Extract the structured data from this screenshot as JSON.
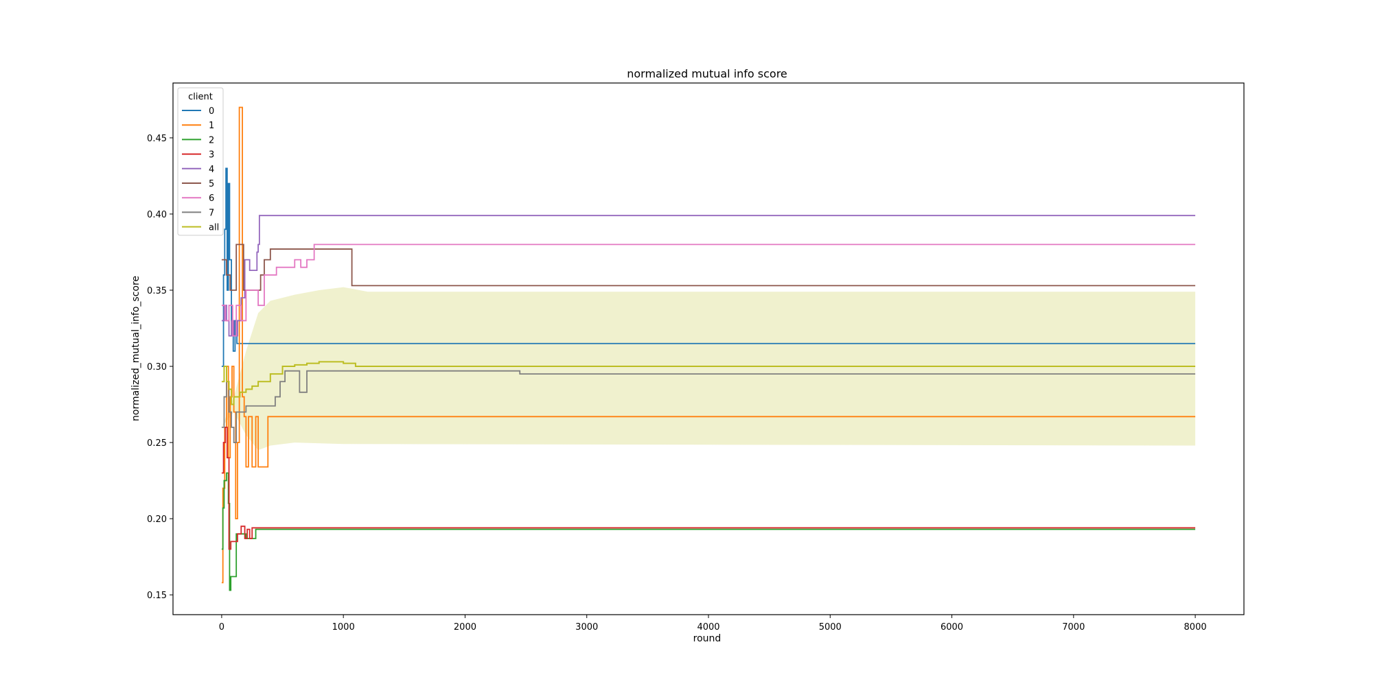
{
  "chart_data": {
    "type": "line",
    "title": "normalized mutual info score",
    "xlabel": "round",
    "ylabel": "normalized_mutual_info_score",
    "xlim": [
      -400,
      8400
    ],
    "ylim": [
      0.137,
      0.486
    ],
    "x_ticks": [
      0,
      1000,
      2000,
      3000,
      4000,
      5000,
      6000,
      7000,
      8000
    ],
    "y_ticks": [
      0.15,
      0.2,
      0.25,
      0.3,
      0.35,
      0.4,
      0.45
    ],
    "grid": false,
    "legend": {
      "title": "client",
      "placement": "top-left"
    },
    "colors": {
      "0": "#1f77b4",
      "1": "#ff7f0e",
      "2": "#2ca02c",
      "3": "#d62728",
      "4": "#9467bd",
      "5": "#8c564b",
      "6": "#e377c2",
      "7": "#7f7f7f",
      "all": "#bcbd22"
    },
    "series": [
      {
        "name": "0",
        "points": [
          [
            0,
            0.3
          ],
          [
            15,
            0.36
          ],
          [
            25,
            0.39
          ],
          [
            35,
            0.43
          ],
          [
            45,
            0.35
          ],
          [
            55,
            0.42
          ],
          [
            65,
            0.37
          ],
          [
            80,
            0.33
          ],
          [
            95,
            0.31
          ],
          [
            110,
            0.33
          ],
          [
            125,
            0.315
          ],
          [
            8000,
            0.315
          ]
        ]
      },
      {
        "name": "1",
        "points": [
          [
            0,
            0.158
          ],
          [
            10,
            0.22
          ],
          [
            25,
            0.26
          ],
          [
            40,
            0.3
          ],
          [
            55,
            0.24
          ],
          [
            70,
            0.28
          ],
          [
            85,
            0.3
          ],
          [
            100,
            0.27
          ],
          [
            115,
            0.2
          ],
          [
            130,
            0.25
          ],
          [
            145,
            0.47
          ],
          [
            160,
            0.47
          ],
          [
            170,
            0.28
          ],
          [
            185,
            0.267
          ],
          [
            200,
            0.234
          ],
          [
            220,
            0.267
          ],
          [
            250,
            0.234
          ],
          [
            280,
            0.267
          ],
          [
            300,
            0.234
          ],
          [
            330,
            0.234
          ],
          [
            350,
            0.234
          ],
          [
            380,
            0.267
          ],
          [
            8000,
            0.267
          ]
        ]
      },
      {
        "name": "2",
        "points": [
          [
            0,
            0.18
          ],
          [
            10,
            0.207
          ],
          [
            20,
            0.225
          ],
          [
            40,
            0.23
          ],
          [
            55,
            0.21
          ],
          [
            65,
            0.153
          ],
          [
            75,
            0.162
          ],
          [
            100,
            0.162
          ],
          [
            120,
            0.19
          ],
          [
            150,
            0.19
          ],
          [
            200,
            0.187
          ],
          [
            250,
            0.187
          ],
          [
            280,
            0.193
          ],
          [
            8000,
            0.193
          ]
        ]
      },
      {
        "name": "3",
        "points": [
          [
            0,
            0.23
          ],
          [
            15,
            0.25
          ],
          [
            30,
            0.26
          ],
          [
            45,
            0.24
          ],
          [
            60,
            0.18
          ],
          [
            75,
            0.185
          ],
          [
            100,
            0.185
          ],
          [
            130,
            0.19
          ],
          [
            160,
            0.195
          ],
          [
            190,
            0.187
          ],
          [
            210,
            0.193
          ],
          [
            230,
            0.187
          ],
          [
            250,
            0.194
          ],
          [
            8000,
            0.194
          ]
        ]
      },
      {
        "name": "4",
        "points": [
          [
            0,
            0.33
          ],
          [
            20,
            0.34
          ],
          [
            40,
            0.33
          ],
          [
            60,
            0.32
          ],
          [
            80,
            0.33
          ],
          [
            100,
            0.32
          ],
          [
            130,
            0.33
          ],
          [
            160,
            0.345
          ],
          [
            190,
            0.37
          ],
          [
            210,
            0.37
          ],
          [
            230,
            0.363
          ],
          [
            280,
            0.363
          ],
          [
            290,
            0.375
          ],
          [
            300,
            0.38
          ],
          [
            310,
            0.399
          ],
          [
            8000,
            0.399
          ]
        ]
      },
      {
        "name": "5",
        "points": [
          [
            0,
            0.37
          ],
          [
            20,
            0.37
          ],
          [
            40,
            0.36
          ],
          [
            70,
            0.35
          ],
          [
            100,
            0.35
          ],
          [
            120,
            0.38
          ],
          [
            160,
            0.38
          ],
          [
            180,
            0.35
          ],
          [
            300,
            0.35
          ],
          [
            320,
            0.36
          ],
          [
            350,
            0.37
          ],
          [
            400,
            0.377
          ],
          [
            1050,
            0.377
          ],
          [
            1070,
            0.353
          ],
          [
            1100,
            0.353
          ],
          [
            8000,
            0.353
          ]
        ]
      },
      {
        "name": "6",
        "points": [
          [
            0,
            0.34
          ],
          [
            30,
            0.33
          ],
          [
            60,
            0.34
          ],
          [
            90,
            0.32
          ],
          [
            120,
            0.34
          ],
          [
            160,
            0.33
          ],
          [
            200,
            0.35
          ],
          [
            250,
            0.35
          ],
          [
            300,
            0.34
          ],
          [
            350,
            0.36
          ],
          [
            400,
            0.36
          ],
          [
            450,
            0.365
          ],
          [
            520,
            0.365
          ],
          [
            600,
            0.37
          ],
          [
            650,
            0.365
          ],
          [
            700,
            0.37
          ],
          [
            760,
            0.38
          ],
          [
            8000,
            0.38
          ]
        ]
      },
      {
        "name": "7",
        "points": [
          [
            0,
            0.26
          ],
          [
            20,
            0.28
          ],
          [
            40,
            0.29
          ],
          [
            60,
            0.27
          ],
          [
            80,
            0.26
          ],
          [
            100,
            0.25
          ],
          [
            120,
            0.27
          ],
          [
            160,
            0.27
          ],
          [
            200,
            0.274
          ],
          [
            300,
            0.274
          ],
          [
            400,
            0.274
          ],
          [
            440,
            0.28
          ],
          [
            480,
            0.29
          ],
          [
            520,
            0.297
          ],
          [
            600,
            0.297
          ],
          [
            640,
            0.283
          ],
          [
            700,
            0.297
          ],
          [
            1100,
            0.297
          ],
          [
            2200,
            0.297
          ],
          [
            2450,
            0.295
          ],
          [
            8000,
            0.295
          ]
        ]
      },
      {
        "name": "all",
        "points": [
          [
            0,
            0.29
          ],
          [
            20,
            0.3
          ],
          [
            40,
            0.29
          ],
          [
            60,
            0.285
          ],
          [
            80,
            0.275
          ],
          [
            100,
            0.28
          ],
          [
            150,
            0.283
          ],
          [
            200,
            0.285
          ],
          [
            250,
            0.287
          ],
          [
            300,
            0.29
          ],
          [
            400,
            0.295
          ],
          [
            500,
            0.3
          ],
          [
            600,
            0.301
          ],
          [
            700,
            0.302
          ],
          [
            800,
            0.303
          ],
          [
            1000,
            0.302
          ],
          [
            1100,
            0.3
          ],
          [
            8000,
            0.3
          ]
        ]
      }
    ],
    "band": {
      "name": "all",
      "upper": [
        [
          0,
          0.26
        ],
        [
          100,
          0.28
        ],
        [
          200,
          0.31
        ],
        [
          300,
          0.335
        ],
        [
          400,
          0.343
        ],
        [
          600,
          0.347
        ],
        [
          800,
          0.35
        ],
        [
          1000,
          0.352
        ],
        [
          1200,
          0.349
        ],
        [
          8000,
          0.349
        ]
      ],
      "lower": [
        [
          0,
          0.26
        ],
        [
          100,
          0.27
        ],
        [
          200,
          0.255
        ],
        [
          300,
          0.245
        ],
        [
          400,
          0.248
        ],
        [
          600,
          0.25
        ],
        [
          1000,
          0.249
        ],
        [
          8000,
          0.248
        ]
      ]
    }
  }
}
